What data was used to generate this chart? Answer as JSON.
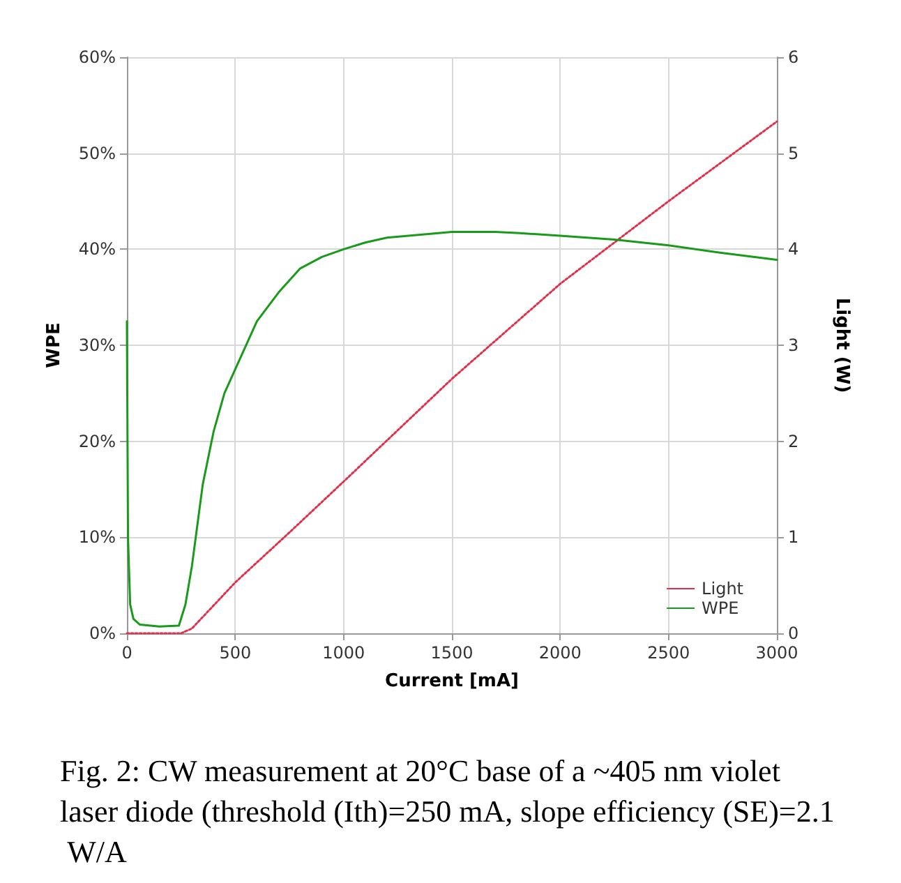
{
  "chart_data": {
    "type": "line",
    "xlabel": "Current [mA]",
    "ylabel": "WPE",
    "y2label": "Light (W)",
    "xlim": [
      0,
      3000
    ],
    "xticks": [
      0,
      500,
      1000,
      1500,
      2000,
      2500,
      3000
    ],
    "ylim": [
      0,
      60
    ],
    "yticks": [
      {
        "value": 0,
        "label": "0%"
      },
      {
        "value": 10,
        "label": "10%"
      },
      {
        "value": 20,
        "label": "20%"
      },
      {
        "value": 30,
        "label": "30%"
      },
      {
        "value": 40,
        "label": "40%"
      },
      {
        "value": 50,
        "label": "50%"
      },
      {
        "value": 60,
        "label": "60%"
      }
    ],
    "y2lim": [
      0,
      6
    ],
    "y2ticks": [
      0,
      1,
      2,
      3,
      4,
      5,
      6
    ],
    "grid": true,
    "legend": "bottom right",
    "marker": "none",
    "series": [
      {
        "name": "Light",
        "color": "#e0304a",
        "axis": "y2",
        "line_style": "dotted",
        "x": [
          0,
          250,
          300,
          500,
          750,
          1000,
          1500,
          2000,
          2500,
          3000
        ],
        "values": [
          0,
          0,
          0.05,
          0.53,
          1.05,
          1.58,
          2.65,
          3.64,
          4.5,
          5.33
        ]
      },
      {
        "name": "WPE",
        "color": "#1a9a1a",
        "line_style": "solid",
        "x": [
          0,
          5,
          15,
          30,
          60,
          150,
          240,
          270,
          300,
          350,
          400,
          450,
          500,
          600,
          700,
          800,
          900,
          1000,
          1100,
          1200,
          1300,
          1500,
          1700,
          1800,
          2000,
          2250,
          2500,
          2750,
          3000
        ],
        "values": [
          32.5,
          10,
          3,
          1.5,
          0.9,
          0.7,
          0.8,
          3,
          7,
          15.5,
          21,
          25,
          27.5,
          32.5,
          35.5,
          38,
          39.2,
          40,
          40.7,
          41.2,
          41.4,
          41.8,
          41.8,
          41.7,
          41.4,
          41,
          40.4,
          39.6,
          38.9
        ]
      }
    ],
    "annotations": [
      "Fig. 2: CW measurement at 20°C base of a ~405 nm violet laser diode (threshold (Ith)=250 mA, slope efficiency (SE)=2.1 W/A"
    ]
  }
}
